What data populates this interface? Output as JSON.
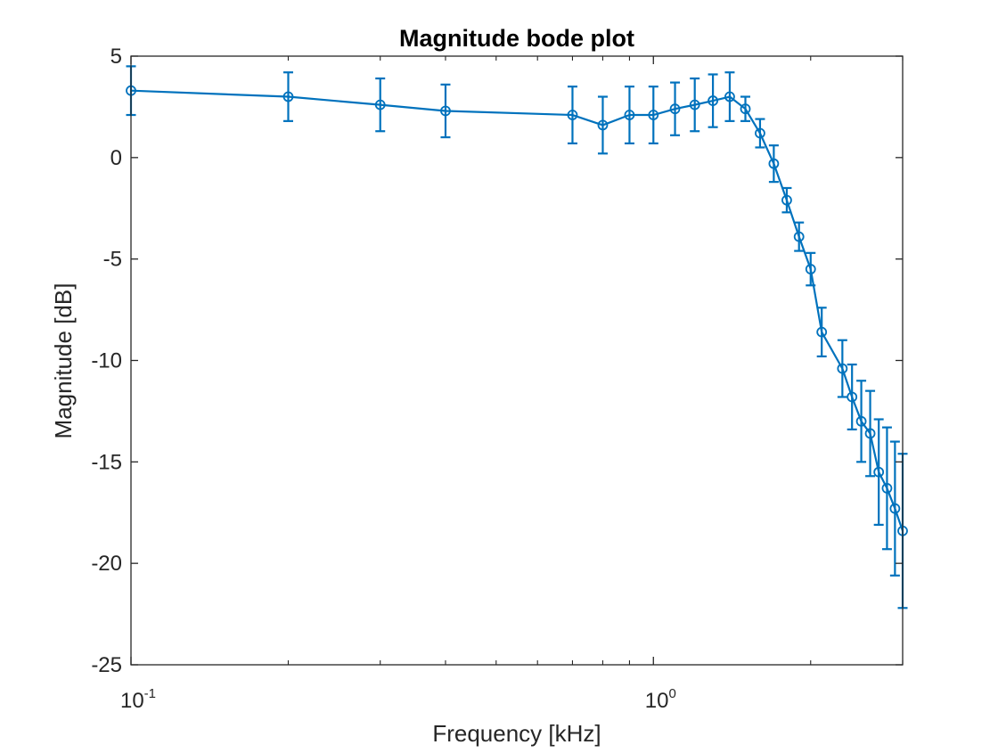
{
  "chart_data": {
    "type": "line",
    "title": "Magnitude bode plot",
    "xlabel": "Frequency [kHz]",
    "ylabel": "Magnitude [dB]",
    "xscale": "log",
    "xlim": [
      0.1,
      3.0
    ],
    "ylim": [
      -25,
      5
    ],
    "grid": false,
    "x_ticks": [
      {
        "value": 0.1,
        "base": "10",
        "exp": "-1"
      },
      {
        "value": 1,
        "base": "10",
        "exp": "0"
      }
    ],
    "y_ticks": [
      {
        "value": 5,
        "label": "5"
      },
      {
        "value": 0,
        "label": "0"
      },
      {
        "value": -5,
        "label": "-5"
      },
      {
        "value": -10,
        "label": "-10"
      },
      {
        "value": -15,
        "label": "-15"
      },
      {
        "value": -20,
        "label": "-20"
      },
      {
        "value": -25,
        "label": "-25"
      }
    ],
    "series": [
      {
        "color": "#0072BD",
        "marker": "circle",
        "error_bars": true,
        "x": [
          0.1,
          0.2,
          0.3,
          0.4,
          0.7,
          0.8,
          0.9,
          1.0,
          1.1,
          1.2,
          1.3,
          1.4,
          1.5,
          1.6,
          1.7,
          1.8,
          1.9,
          2.0,
          2.1,
          2.3,
          2.4,
          2.5,
          2.6,
          2.7,
          2.8,
          2.9,
          3.0
        ],
        "y": [
          3.3,
          3.0,
          2.6,
          2.3,
          2.1,
          1.6,
          2.1,
          2.1,
          2.4,
          2.6,
          2.8,
          3.0,
          2.4,
          1.2,
          -0.3,
          -2.1,
          -3.9,
          -5.5,
          -8.6,
          -10.4,
          -11.8,
          -13.0,
          -13.6,
          -15.5,
          -16.3,
          -17.3,
          -18.4
        ],
        "err": [
          1.2,
          1.2,
          1.3,
          1.3,
          1.4,
          1.4,
          1.4,
          1.4,
          1.3,
          1.3,
          1.3,
          1.2,
          0.6,
          0.7,
          0.9,
          0.6,
          0.7,
          0.8,
          1.2,
          1.4,
          1.6,
          2.0,
          2.1,
          2.6,
          3.0,
          3.3,
          3.8
        ]
      }
    ]
  }
}
